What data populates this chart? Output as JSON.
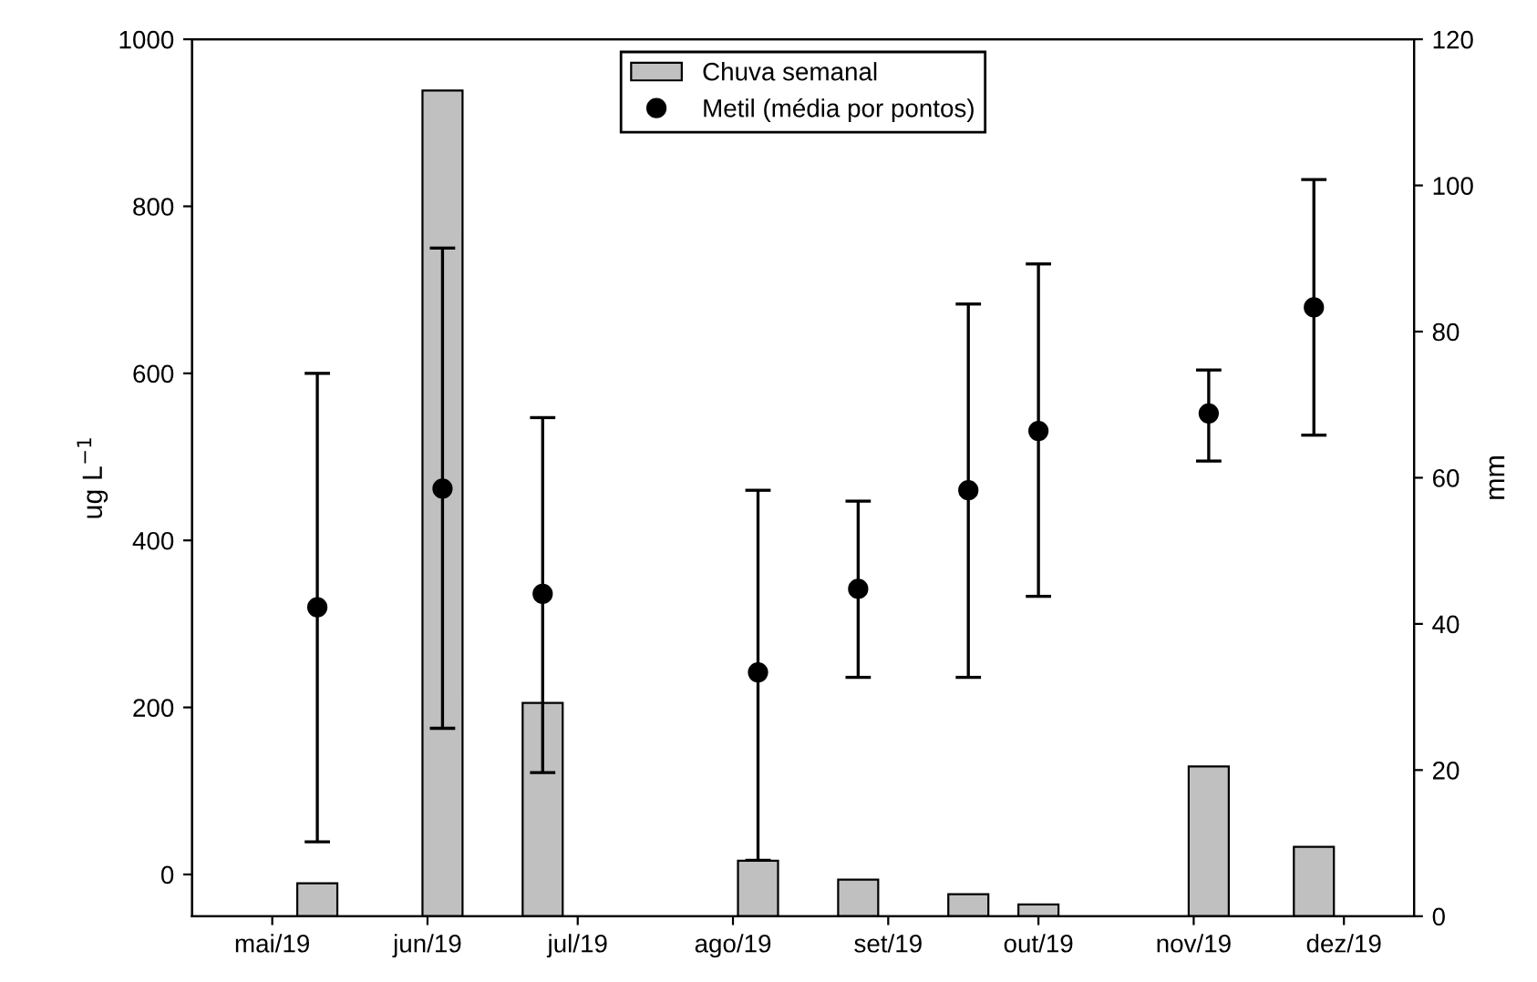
{
  "chart_data": {
    "type": "bar",
    "x": [
      "2019-05-10",
      "2019-06-04",
      "2019-06-24",
      "2019-08-06",
      "2019-08-26",
      "2019-09-17",
      "2019-10-01",
      "2019-11-04",
      "2019-11-25"
    ],
    "series": [
      {
        "name": "Chuva semanal",
        "axis": "y2",
        "color": "#c0c0c0",
        "values": [
          4.5,
          113,
          29.2,
          7.6,
          5.0,
          3.0,
          1.6,
          20.5,
          9.5
        ]
      },
      {
        "name": "Metil (média por pontos)",
        "type": "scatter",
        "axis": "y",
        "color": "#000000",
        "values": [
          320,
          462,
          336,
          242,
          342,
          460,
          531,
          552,
          679
        ],
        "errors": [
          [
            39,
            600
          ],
          [
            175,
            750
          ],
          [
            122,
            547
          ],
          [
            17,
            460
          ],
          [
            236,
            447
          ],
          [
            236,
            683
          ],
          [
            333,
            731
          ],
          [
            495,
            604
          ],
          [
            526,
            832
          ]
        ]
      }
    ],
    "ylabel": "ug L$^{−1}$",
    "y2label": "mm",
    "xlim": [
      "2019-04-15",
      "2019-12-15"
    ],
    "xticks": [
      {
        "value": "2019-05-01",
        "label": "mai/19"
      },
      {
        "value": "2019-06-01",
        "label": "jun/19"
      },
      {
        "value": "2019-07-01",
        "label": "jul/19"
      },
      {
        "value": "2019-08-01",
        "label": "ago/19"
      },
      {
        "value": "2019-09-01",
        "label": "set/19"
      },
      {
        "value": "2019-10-01",
        "label": "out/19"
      },
      {
        "value": "2019-11-01",
        "label": "nov/19"
      },
      {
        "value": "2019-12-01",
        "label": "dez/19"
      }
    ],
    "ylim": [
      -50,
      1000
    ],
    "yticks": [
      0,
      200,
      400,
      600,
      800,
      1000
    ],
    "y2lim": [
      0,
      120
    ],
    "y2ticks": [
      0,
      20,
      40,
      60,
      80,
      100,
      120
    ],
    "marker": "circle",
    "legend": "top",
    "grid": false
  }
}
